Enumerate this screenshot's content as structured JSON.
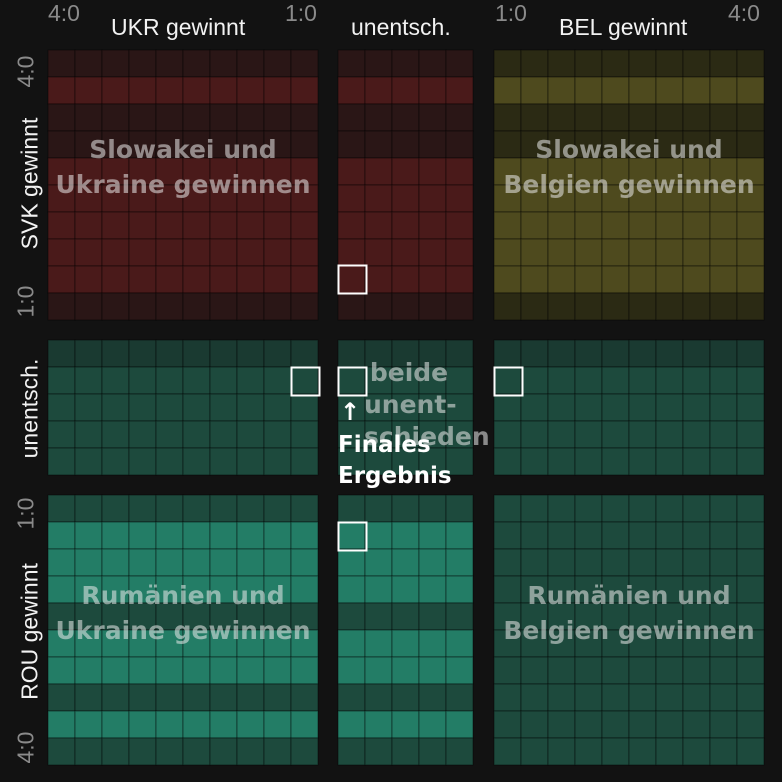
{
  "header": {
    "ukr_win": "UKR gewinnt",
    "draw": "unentsch.",
    "bel_win": "BEL gewinnt",
    "tick_left_outer": "4:0",
    "tick_left_inner": "1:0",
    "tick_right_inner": "1:0",
    "tick_right_outer": "4:0"
  },
  "side": {
    "svk_win": "SVK gewinnt",
    "draw": "unentsch.",
    "rou_win": "ROU gewinnt",
    "tick_top_outer": "4:0",
    "tick_top_inner": "1:0",
    "tick_bottom_inner": "1:0",
    "tick_bottom_outer": "4:0"
  },
  "annotation": {
    "final_result": "Finales Ergebnis"
  },
  "colors": {
    "red_dim": "#2a1616",
    "red_bright": "#4a1a1a",
    "olive_dim": "#2b2a14",
    "olive_bright": "#4e4a1e",
    "green_dim": "#1a3a31",
    "green_mid": "#1d4a3d",
    "green_bright": "#237d66",
    "highlight": "#ffffff"
  },
  "chart_data": {
    "type": "heatmap",
    "columns": {
      "groups": [
        "UKR gewinnt",
        "unentsch.",
        "BEL gewinnt"
      ],
      "ticks": [
        "4:0",
        "1:0",
        "1:0",
        "4:0"
      ]
    },
    "rows": {
      "groups": [
        "SVK gewinnt",
        "unentsch.",
        "ROU gewinnt"
      ],
      "ticks": [
        "4:0",
        "1:0",
        "1:0",
        "4:0"
      ]
    },
    "quadrants": [
      {
        "row": "SVK gewinnt",
        "col": "UKR gewinnt",
        "label": "Slowakei und Ukraine gewinnen",
        "color": "red"
      },
      {
        "row": "SVK gewinnt",
        "col": "unentsch.",
        "label": "",
        "color": "red"
      },
      {
        "row": "SVK gewinnt",
        "col": "BEL gewinnt",
        "label": "Slowakei und Belgien gewinnen",
        "color": "olive"
      },
      {
        "row": "unentsch.",
        "col": "UKR gewinnt",
        "label": "",
        "color": "green"
      },
      {
        "row": "unentsch.",
        "col": "unentsch.",
        "label": "beide unent- schieden",
        "color": "green"
      },
      {
        "row": "unentsch.",
        "col": "BEL gewinnt",
        "label": "",
        "color": "green"
      },
      {
        "row": "ROU gewinnt",
        "col": "UKR gewinnt",
        "label": "Rumänien und Ukraine gewinnen",
        "color": "green"
      },
      {
        "row": "ROU gewinnt",
        "col": "unentsch.",
        "label": "",
        "color": "green"
      },
      {
        "row": "ROU gewinnt",
        "col": "BEL gewinnt",
        "label": "Rumänien und Belgien gewinnen",
        "color": "green"
      }
    ],
    "highlighted_cells": [
      {
        "row_group": "SVK gewinnt",
        "col_group": "unentsch."
      },
      {
        "row_group": "unentsch.",
        "col_group": "UKR gewinnt"
      },
      {
        "row_group": "unentsch.",
        "col_group": "unentsch.",
        "final": true
      },
      {
        "row_group": "unentsch.",
        "col_group": "BEL gewinnt"
      },
      {
        "row_group": "ROU gewinnt",
        "col_group": "unentsch."
      }
    ]
  }
}
